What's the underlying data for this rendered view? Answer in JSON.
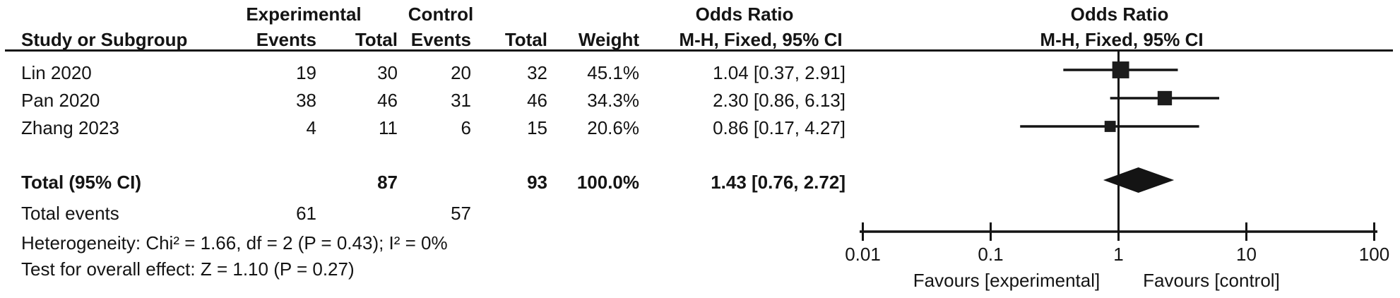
{
  "table": {
    "group_headers": {
      "experimental": "Experimental",
      "control": "Control"
    },
    "or_column_title": "Odds Ratio",
    "col_headers": {
      "study": "Study or Subgroup",
      "events": "Events",
      "total": "Total",
      "weight": "Weight",
      "mh": "M-H, Fixed, 95% CI"
    },
    "rows": [
      {
        "study": "Lin 2020",
        "exp_events": "19",
        "exp_total": "30",
        "ctrl_events": "20",
        "ctrl_total": "32",
        "weight": "45.1%",
        "or_ci": "1.04 [0.37, 2.91]"
      },
      {
        "study": "Pan 2020",
        "exp_events": "38",
        "exp_total": "46",
        "ctrl_events": "31",
        "ctrl_total": "46",
        "weight": "34.3%",
        "or_ci": "2.30 [0.86, 6.13]"
      },
      {
        "study": "Zhang 2023",
        "exp_events": "4",
        "exp_total": "11",
        "ctrl_events": "6",
        "ctrl_total": "15",
        "weight": "20.6%",
        "or_ci": "0.86 [0.17, 4.27]"
      }
    ],
    "total_row": {
      "label": "Total (95% CI)",
      "exp_total": "87",
      "ctrl_total": "93",
      "weight": "100.0%",
      "or_ci": "1.43 [0.76, 2.72]"
    },
    "total_events_row": {
      "label": "Total events",
      "exp": "61",
      "ctrl": "57"
    },
    "heterogeneity_line": "Heterogeneity: Chi² = 1.66, df = 2 (P = 0.43); I² = 0%",
    "overall_effect_line": "Test for overall effect: Z = 1.10 (P = 0.27)"
  },
  "chart_data": {
    "type": "forest",
    "effect_measure": "Odds Ratio",
    "method_label": "M-H, Fixed, 95% CI",
    "x_scale": "log10",
    "x_ticks": [
      0.01,
      0.1,
      1,
      10,
      100
    ],
    "x_tick_labels": [
      "0.01",
      "0.1",
      "1",
      "10",
      "100"
    ],
    "null_line": 1,
    "studies": [
      {
        "name": "Lin 2020",
        "or": 1.04,
        "ci_low": 0.37,
        "ci_high": 2.91,
        "weight_pct": 45.1,
        "exp_events": 19,
        "exp_total": 30,
        "ctrl_events": 20,
        "ctrl_total": 32
      },
      {
        "name": "Pan 2020",
        "or": 2.3,
        "ci_low": 0.86,
        "ci_high": 6.13,
        "weight_pct": 34.3,
        "exp_events": 38,
        "exp_total": 46,
        "ctrl_events": 31,
        "ctrl_total": 46
      },
      {
        "name": "Zhang 2023",
        "or": 0.86,
        "ci_low": 0.17,
        "ci_high": 4.27,
        "weight_pct": 20.6,
        "exp_events": 4,
        "exp_total": 11,
        "ctrl_events": 6,
        "ctrl_total": 15
      }
    ],
    "total": {
      "or": 1.43,
      "ci_low": 0.76,
      "ci_high": 2.72,
      "weight_pct": 100.0,
      "exp_total": 87,
      "ctrl_total": 93,
      "exp_events": 61,
      "ctrl_events": 57
    },
    "heterogeneity": {
      "chi2": 1.66,
      "df": 2,
      "p": 0.43,
      "i2_pct": 0
    },
    "overall_effect": {
      "z": 1.1,
      "p": 0.27
    },
    "favours_left": "Favours [experimental]",
    "favours_right": "Favours [control]",
    "marker_color": "#1c1c1c",
    "line_color": "#141414"
  }
}
